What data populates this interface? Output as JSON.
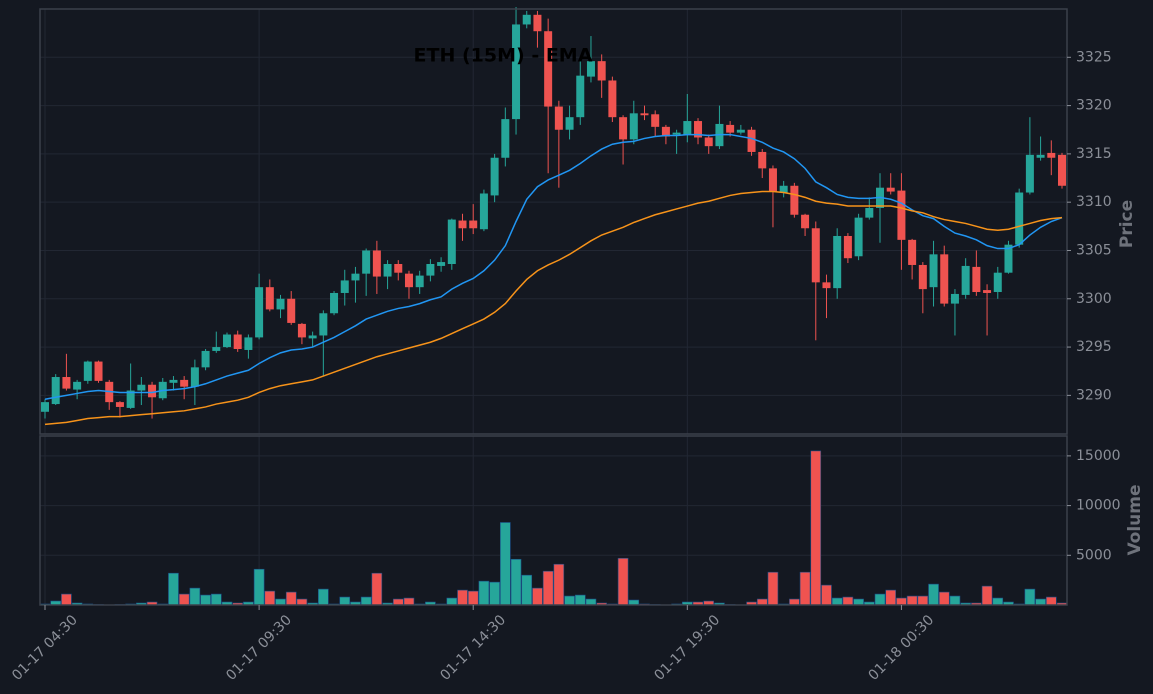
{
  "chart_data": [
    {
      "type": "candlestick",
      "title": "ETH (15M) - EMA",
      "ylabel": "Price",
      "up_color": "#26a69a",
      "down_color": "#ef5350",
      "grid": true,
      "ylim": [
        3286,
        3330
      ],
      "yticks": [
        3290,
        3295,
        3300,
        3305,
        3310,
        3315,
        3320,
        3325
      ],
      "categories": [
        "01-17 04:30",
        null,
        null,
        null,
        null,
        null,
        null,
        null,
        null,
        null,
        null,
        null,
        null,
        null,
        null,
        null,
        null,
        null,
        null,
        null,
        "01-17 09:30",
        null,
        null,
        null,
        null,
        null,
        null,
        null,
        null,
        null,
        null,
        null,
        null,
        null,
        null,
        null,
        null,
        null,
        null,
        null,
        "01-17 14:30",
        null,
        null,
        null,
        null,
        null,
        null,
        null,
        null,
        null,
        null,
        null,
        null,
        null,
        null,
        null,
        null,
        null,
        null,
        null,
        "01-17 19:30",
        null,
        null,
        null,
        null,
        null,
        null,
        null,
        null,
        null,
        null,
        null,
        null,
        null,
        null,
        null,
        null,
        null,
        null,
        null,
        "01-18 00:30",
        null,
        null,
        null,
        null,
        null,
        null,
        null,
        null,
        null,
        null,
        null,
        null,
        null,
        null,
        null
      ],
      "open": [
        3288.3,
        3289.1,
        3291.9,
        3290.6,
        3291.5,
        3293.5,
        3291.4,
        3289.3,
        3288.7,
        3290.5,
        3291.1,
        3289.7,
        3291.3,
        3291.6,
        3290.9,
        3292.9,
        3294.6,
        3295,
        3296.3,
        3294.7,
        3296,
        3301.2,
        3298.9,
        3300,
        3297.4,
        3295.9,
        3296.2,
        3298.5,
        3300.6,
        3301.9,
        3302.6,
        3305,
        3302.3,
        3303.6,
        3302.6,
        3301.2,
        3302.4,
        3303.4,
        3303.6,
        3308.1,
        3308.1,
        3307.2,
        3310.7,
        3314.6,
        3318.6,
        3328.4,
        3329.4,
        3327.7,
        3319.9,
        3317.5,
        3318.8,
        3323,
        3324.6,
        3322.6,
        3318.8,
        3316.5,
        3319.2,
        3319.1,
        3317.8,
        3317,
        3317,
        3318.4,
        3316.7,
        3315.8,
        3318,
        3317.2,
        3317.5,
        3315.2,
        3313.5,
        3311,
        3311.7,
        3308.7,
        3307.3,
        3301.7,
        3301.1,
        3306.5,
        3304.4,
        3308.4,
        3309.4,
        3311.5,
        3311.2,
        3306.1,
        3303.5,
        3301.2,
        3304.6,
        3299.5,
        3300.4,
        3303.3,
        3300.9,
        3300.7,
        3302.7,
        3305.6,
        3311,
        3314.6,
        3315.1,
        3314.9
      ],
      "high": [
        3289.6,
        3292.2,
        3294.3,
        3291.6,
        3293.6,
        3293.6,
        3291.6,
        3289.4,
        3293.3,
        3291.9,
        3291.4,
        3291.8,
        3292,
        3292,
        3293.7,
        3294.8,
        3296.6,
        3296.5,
        3296.7,
        3296.3,
        3302.6,
        3302,
        3300.4,
        3300.8,
        3297.5,
        3296.6,
        3298.8,
        3300.8,
        3303,
        3303.3,
        3305.2,
        3306,
        3304,
        3304,
        3302.9,
        3302.9,
        3304.1,
        3304.3,
        3308.3,
        3308.8,
        3309.8,
        3311.3,
        3315,
        3319.8,
        3330.2,
        3329.8,
        3329.8,
        3329,
        3320.5,
        3320,
        3325,
        3327.2,
        3325.3,
        3323,
        3319,
        3320.5,
        3320,
        3319.5,
        3318,
        3317.5,
        3321.2,
        3318.7,
        3317,
        3320,
        3318.4,
        3318,
        3317.8,
        3315.5,
        3313.8,
        3312.2,
        3312,
        3308.8,
        3308,
        3302.5,
        3307.3,
        3306.8,
        3308.8,
        3310.5,
        3313,
        3313,
        3313,
        3306.2,
        3303.8,
        3306,
        3305.5,
        3301,
        3304.2,
        3305,
        3301.5,
        3303.3,
        3306,
        3311.4,
        3318.8,
        3316.8,
        3316.4,
        3315.1
      ],
      "low": [
        3287.6,
        3289,
        3290.5,
        3289.6,
        3291.2,
        3291.3,
        3288.5,
        3287.7,
        3288.6,
        3289,
        3287.6,
        3289.5,
        3290.5,
        3289.6,
        3289,
        3292.6,
        3294.4,
        3294.9,
        3294.5,
        3293.8,
        3295.8,
        3298.7,
        3298,
        3297.3,
        3295.3,
        3295,
        3292,
        3298.3,
        3299.3,
        3299.6,
        3300.3,
        3300.5,
        3301,
        3301.9,
        3300,
        3300.5,
        3301.8,
        3302.8,
        3303,
        3306,
        3306.7,
        3307,
        3310,
        3313.7,
        3317,
        3328,
        3326,
        3313,
        3311.5,
        3316.5,
        3318,
        3322.4,
        3320.8,
        3318.3,
        3313.9,
        3316,
        3318.5,
        3316.8,
        3316,
        3315,
        3316.2,
        3316,
        3315,
        3315.5,
        3316.8,
        3317,
        3314.8,
        3312.5,
        3307.4,
        3310.5,
        3308.4,
        3306.5,
        3295.7,
        3298,
        3300,
        3303.7,
        3304,
        3308.2,
        3305.8,
        3310.8,
        3303,
        3302,
        3298.5,
        3299.2,
        3299.2,
        3296.2,
        3300,
        3300.3,
        3296.2,
        3300,
        3302.6,
        3305.3,
        3310.8,
        3314.3,
        3312.8,
        3311.4
      ],
      "close": [
        3289.3,
        3291.9,
        3290.7,
        3291.4,
        3293.5,
        3291.5,
        3289.3,
        3288.8,
        3290.5,
        3291.1,
        3289.8,
        3291.4,
        3291.6,
        3290.9,
        3292.9,
        3294.6,
        3295,
        3296.3,
        3294.8,
        3296,
        3301.2,
        3298.9,
        3300,
        3297.5,
        3296,
        3296.2,
        3298.5,
        3300.6,
        3301.9,
        3302.6,
        3305,
        3302.3,
        3303.6,
        3302.7,
        3301.2,
        3302.4,
        3303.6,
        3303.8,
        3308.2,
        3307.3,
        3307.3,
        3310.9,
        3314.6,
        3318.6,
        3328.4,
        3329.4,
        3327.7,
        3319.9,
        3317.5,
        3318.8,
        3323.1,
        3324.6,
        3322.6,
        3318.8,
        3316.5,
        3319.2,
        3319,
        3317.8,
        3316.8,
        3317.2,
        3318.4,
        3316.7,
        3315.8,
        3318.1,
        3317.2,
        3317.5,
        3315.2,
        3313.5,
        3311.1,
        3311.7,
        3308.7,
        3307.3,
        3301.7,
        3301.1,
        3306.5,
        3304.2,
        3308.4,
        3309.4,
        3311.5,
        3311.1,
        3306.1,
        3303.5,
        3301,
        3304.6,
        3299.5,
        3300.5,
        3303.4,
        3300.7,
        3300.6,
        3302.7,
        3305.6,
        3311,
        3314.9,
        3314.9,
        3314.6,
        3311.7
      ],
      "lines": [
        {
          "color": "#2196f3",
          "values": [
            3289.6,
            3289.8,
            3290,
            3290.2,
            3290.4,
            3290.5,
            3290.4,
            3290.3,
            3290.3,
            3290.3,
            3290.3,
            3290.5,
            3290.6,
            3290.7,
            3290.9,
            3291.2,
            3291.6,
            3292,
            3292.3,
            3292.6,
            3293.3,
            3293.9,
            3294.4,
            3294.7,
            3294.8,
            3295,
            3295.5,
            3296,
            3296.6,
            3297.2,
            3297.9,
            3298.3,
            3298.7,
            3299,
            3299.2,
            3299.5,
            3299.9,
            3300.2,
            3301,
            3301.6,
            3302.1,
            3302.9,
            3304,
            3305.5,
            3308,
            3310.3,
            3311.6,
            3312.3,
            3312.8,
            3313.3,
            3314,
            3314.8,
            3315.5,
            3316,
            3316.2,
            3316.3,
            3316.6,
            3316.8,
            3316.9,
            3316.9,
            3317,
            3317,
            3316.9,
            3317,
            3317,
            3316.8,
            3316.6,
            3316.2,
            3315.6,
            3315.2,
            3314.5,
            3313.5,
            3312.1,
            3311.5,
            3310.8,
            3310.5,
            3310.4,
            3310.4,
            3310.5,
            3310.3,
            3309.9,
            3309.2,
            3308.6,
            3308.3,
            3307.5,
            3306.8,
            3306.5,
            3306.1,
            3305.5,
            3305.2,
            3305.2,
            3305.6,
            3306.6,
            3307.4,
            3308,
            3308.4
          ]
        },
        {
          "color": "#f7931a",
          "values": [
            3287,
            3287.1,
            3287.2,
            3287.4,
            3287.6,
            3287.7,
            3287.8,
            3287.8,
            3287.9,
            3288,
            3288.1,
            3288.2,
            3288.3,
            3288.4,
            3288.6,
            3288.8,
            3289.1,
            3289.3,
            3289.5,
            3289.8,
            3290.3,
            3290.7,
            3291,
            3291.2,
            3291.4,
            3291.6,
            3292,
            3292.4,
            3292.8,
            3293.2,
            3293.6,
            3294,
            3294.3,
            3294.6,
            3294.9,
            3295.2,
            3295.5,
            3295.9,
            3296.4,
            3296.9,
            3297.4,
            3297.9,
            3298.6,
            3299.5,
            3300.8,
            3302,
            3302.9,
            3303.5,
            3304,
            3304.6,
            3305.3,
            3306,
            3306.6,
            3307,
            3307.4,
            3307.9,
            3308.3,
            3308.7,
            3309,
            3309.3,
            3309.6,
            3309.9,
            3310.1,
            3310.4,
            3310.7,
            3310.9,
            3311,
            3311.1,
            3311.1,
            3311,
            3310.8,
            3310.5,
            3310.1,
            3309.9,
            3309.8,
            3309.6,
            3309.6,
            3309.6,
            3309.6,
            3309.6,
            3309.4,
            3309.1,
            3308.9,
            3308.5,
            3308.2,
            3308,
            3307.8,
            3307.5,
            3307.2,
            3307.1,
            3307.2,
            3307.5,
            3307.8,
            3308.1,
            3308.3,
            3308.4
          ]
        }
      ]
    },
    {
      "type": "bar",
      "ylabel": "Volume",
      "grid": true,
      "ylim": [
        0,
        17000
      ],
      "yticks": [
        5000,
        10000,
        15000
      ],
      "values": [
        100,
        400,
        1100,
        200,
        100,
        50,
        0,
        50,
        100,
        200,
        300,
        100,
        3200,
        1100,
        1700,
        1000,
        1100,
        300,
        200,
        300,
        3600,
        1400,
        600,
        1300,
        600,
        200,
        1600,
        100,
        800,
        300,
        800,
        3200,
        200,
        600,
        700,
        100,
        300,
        100,
        700,
        1500,
        1400,
        2400,
        2300,
        8300,
        4600,
        3000,
        1700,
        3400,
        4100,
        900,
        1000,
        600,
        200,
        100,
        4700,
        500,
        100,
        50,
        0,
        100,
        300,
        300,
        400,
        200,
        50,
        0,
        300,
        600,
        3300,
        100,
        600,
        3300,
        15500,
        2000,
        700,
        800,
        600,
        300,
        1100,
        1500,
        700,
        900,
        900,
        2100,
        1300,
        900,
        200,
        200,
        1900,
        700,
        300,
        100,
        1600,
        600,
        800,
        200
      ]
    }
  ]
}
